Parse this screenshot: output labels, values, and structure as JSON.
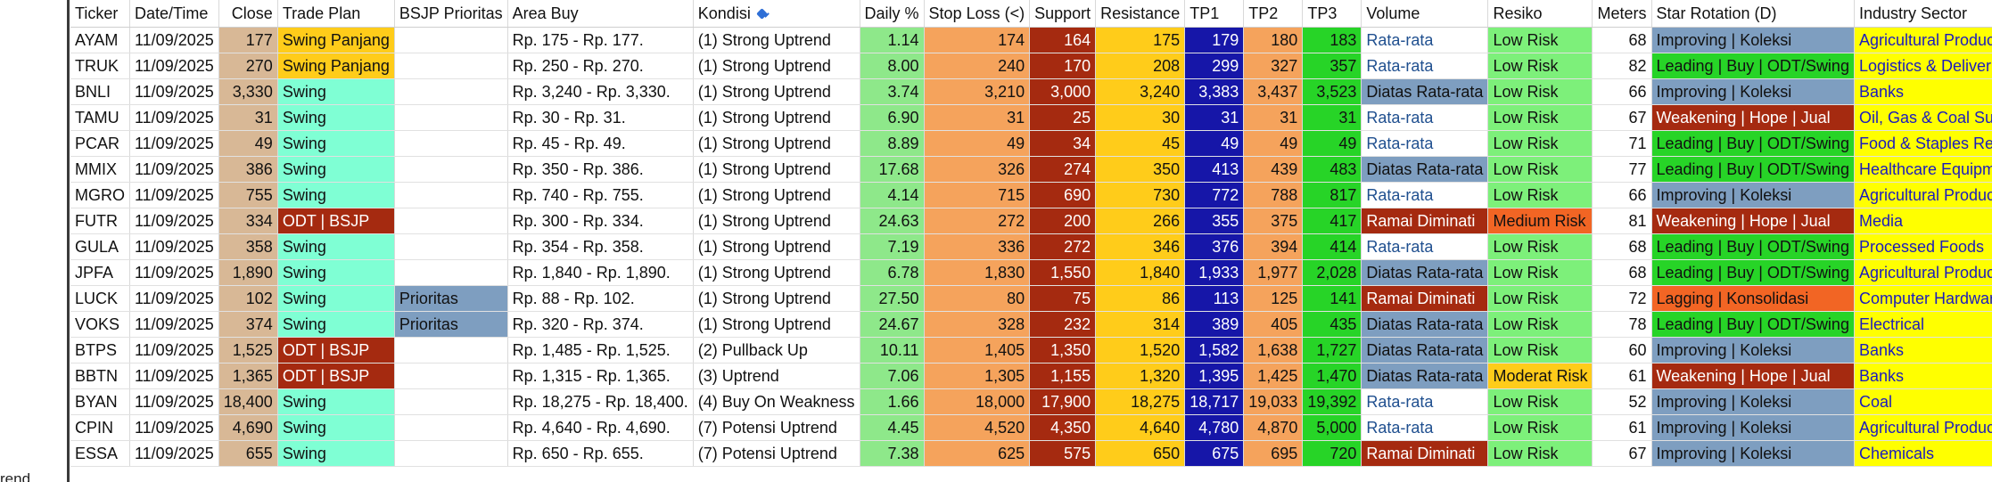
{
  "left_fragment": "rend",
  "columns": [
    "Ticker",
    "Date/Time",
    "Close",
    "Trade Plan",
    "BSJP Prioritas",
    "Area Buy",
    "Kondisi",
    "Daily %",
    "Stop Loss (<)",
    "Support",
    "Resistance",
    "TP1",
    "TP2",
    "TP3",
    "Volume",
    "Resiko",
    "Meters",
    "Star Rotation (D)",
    "Industry Sector"
  ],
  "sort_icon": "sort-filter-icon",
  "rows": [
    {
      "ticker": "AYAM",
      "date": "11/09/2025",
      "close": "177",
      "plan": "Swing Panjang",
      "bsjp": "",
      "area": "Rp. 175 - Rp. 177.",
      "kondisi": "(1) Strong Uptrend",
      "daily": "1.14",
      "stop": "174",
      "support": "164",
      "resistance": "175",
      "tp1": "179",
      "tp2": "180",
      "tp3": "183",
      "volume": "Rata-rata",
      "risk": "Low Risk",
      "meters": "68",
      "star": "Improving | Koleksi",
      "sector": "Agricultural Products"
    },
    {
      "ticker": "TRUK",
      "date": "11/09/2025",
      "close": "270",
      "plan": "Swing Panjang",
      "bsjp": "",
      "area": "Rp. 250 - Rp. 270.",
      "kondisi": "(1) Strong Uptrend",
      "daily": "8.00",
      "stop": "240",
      "support": "170",
      "resistance": "208",
      "tp1": "299",
      "tp2": "327",
      "tp3": "357",
      "volume": "Rata-rata",
      "risk": "Low Risk",
      "meters": "82",
      "star": "Leading | Buy | ODT/Swing",
      "sector": "Logistics & Deliveries"
    },
    {
      "ticker": "BNLI",
      "date": "11/09/2025",
      "close": "3,330",
      "plan": "Swing",
      "bsjp": "",
      "area": "Rp. 3,240 - Rp. 3,330.",
      "kondisi": "(1) Strong Uptrend",
      "daily": "3.74",
      "stop": "3,210",
      "support": "3,000",
      "resistance": "3,240",
      "tp1": "3,383",
      "tp2": "3,437",
      "tp3": "3,523",
      "volume": "Diatas Rata-rata",
      "risk": "Low Risk",
      "meters": "66",
      "star": "Improving | Koleksi",
      "sector": "Banks"
    },
    {
      "ticker": "TAMU",
      "date": "11/09/2025",
      "close": "31",
      "plan": "Swing",
      "bsjp": "",
      "area": "Rp. 30 - Rp. 31.",
      "kondisi": "(1) Strong Uptrend",
      "daily": "6.90",
      "stop": "31",
      "support": "25",
      "resistance": "30",
      "tp1": "31",
      "tp2": "31",
      "tp3": "31",
      "volume": "Rata-rata",
      "risk": "Low Risk",
      "meters": "67",
      "star": "Weakening | Hope | Jual",
      "sector": "Oil, Gas & Coal Supp"
    },
    {
      "ticker": "PCAR",
      "date": "11/09/2025",
      "close": "49",
      "plan": "Swing",
      "bsjp": "",
      "area": "Rp. 45 - Rp. 49.",
      "kondisi": "(1) Strong Uptrend",
      "daily": "8.89",
      "stop": "49",
      "support": "34",
      "resistance": "45",
      "tp1": "49",
      "tp2": "49",
      "tp3": "49",
      "volume": "Rata-rata",
      "risk": "Low Risk",
      "meters": "71",
      "star": "Leading | Buy | ODT/Swing",
      "sector": "Food & Staples Retail"
    },
    {
      "ticker": "MMIX",
      "date": "11/09/2025",
      "close": "386",
      "plan": "Swing",
      "bsjp": "",
      "area": "Rp. 350 - Rp. 386.",
      "kondisi": "(1) Strong Uptrend",
      "daily": "17.68",
      "stop": "326",
      "support": "274",
      "resistance": "350",
      "tp1": "413",
      "tp2": "439",
      "tp3": "483",
      "volume": "Diatas Rata-rata",
      "risk": "Low Risk",
      "meters": "77",
      "star": "Leading | Buy | ODT/Swing",
      "sector": "Healthcare Equipment"
    },
    {
      "ticker": "MGRO",
      "date": "11/09/2025",
      "close": "755",
      "plan": "Swing",
      "bsjp": "",
      "area": "Rp. 740 - Rp. 755.",
      "kondisi": "(1) Strong Uptrend",
      "daily": "4.14",
      "stop": "715",
      "support": "690",
      "resistance": "730",
      "tp1": "772",
      "tp2": "788",
      "tp3": "817",
      "volume": "Rata-rata",
      "risk": "Low Risk",
      "meters": "66",
      "star": "Improving | Koleksi",
      "sector": "Agricultural Products"
    },
    {
      "ticker": "FUTR",
      "date": "11/09/2025",
      "close": "334",
      "plan": "ODT | BSJP",
      "bsjp": "",
      "area": "Rp. 300 - Rp. 334.",
      "kondisi": "(1) Strong Uptrend",
      "daily": "24.63",
      "stop": "272",
      "support": "200",
      "resistance": "266",
      "tp1": "355",
      "tp2": "375",
      "tp3": "417",
      "volume": "Ramai Diminati",
      "risk": "Medium Risk",
      "meters": "81",
      "star": "Weakening | Hope | Jual",
      "sector": "Media"
    },
    {
      "ticker": "GULA",
      "date": "11/09/2025",
      "close": "358",
      "plan": "Swing",
      "bsjp": "",
      "area": "Rp. 354 - Rp. 358.",
      "kondisi": "(1) Strong Uptrend",
      "daily": "7.19",
      "stop": "336",
      "support": "272",
      "resistance": "346",
      "tp1": "376",
      "tp2": "394",
      "tp3": "414",
      "volume": "Rata-rata",
      "risk": "Low Risk",
      "meters": "68",
      "star": "Leading | Buy | ODT/Swing",
      "sector": "Processed Foods"
    },
    {
      "ticker": "JPFA",
      "date": "11/09/2025",
      "close": "1,890",
      "plan": "Swing",
      "bsjp": "",
      "area": "Rp. 1,840 - Rp. 1,890.",
      "kondisi": "(1) Strong Uptrend",
      "daily": "6.78",
      "stop": "1,830",
      "support": "1,550",
      "resistance": "1,840",
      "tp1": "1,933",
      "tp2": "1,977",
      "tp3": "2,028",
      "volume": "Diatas Rata-rata",
      "risk": "Low Risk",
      "meters": "68",
      "star": "Leading | Buy | ODT/Swing",
      "sector": "Agricultural Products"
    },
    {
      "ticker": "LUCK",
      "date": "11/09/2025",
      "close": "102",
      "plan": "Swing",
      "bsjp": "Prioritas",
      "area": "Rp. 88 - Rp. 102.",
      "kondisi": "(1) Strong Uptrend",
      "daily": "27.50",
      "stop": "80",
      "support": "75",
      "resistance": "86",
      "tp1": "113",
      "tp2": "125",
      "tp3": "141",
      "volume": "Ramai Diminati",
      "risk": "Low Risk",
      "meters": "72",
      "star": "Lagging | Konsolidasi",
      "sector": "Computer Hardware"
    },
    {
      "ticker": "VOKS",
      "date": "11/09/2025",
      "close": "374",
      "plan": "Swing",
      "bsjp": "Prioritas",
      "area": "Rp. 320 - Rp. 374.",
      "kondisi": "(1) Strong Uptrend",
      "daily": "24.67",
      "stop": "328",
      "support": "232",
      "resistance": "314",
      "tp1": "389",
      "tp2": "405",
      "tp3": "435",
      "volume": "Diatas Rata-rata",
      "risk": "Low Risk",
      "meters": "78",
      "star": "Leading | Buy | ODT/Swing",
      "sector": "Electrical"
    },
    {
      "ticker": "BTPS",
      "date": "11/09/2025",
      "close": "1,525",
      "plan": "ODT | BSJP",
      "bsjp": "",
      "area": "Rp. 1,485 - Rp. 1,525.",
      "kondisi": "(2) Pullback Up",
      "daily": "10.11",
      "stop": "1,405",
      "support": "1,350",
      "resistance": "1,520",
      "tp1": "1,582",
      "tp2": "1,638",
      "tp3": "1,727",
      "volume": "Diatas Rata-rata",
      "risk": "Low Risk",
      "meters": "60",
      "star": "Improving | Koleksi",
      "sector": "Banks"
    },
    {
      "ticker": "BBTN",
      "date": "11/09/2025",
      "close": "1,365",
      "plan": "ODT | BSJP",
      "bsjp": "",
      "area": "Rp. 1,315 - Rp. 1,365.",
      "kondisi": "(3) Uptrend",
      "daily": "7.06",
      "stop": "1,305",
      "support": "1,155",
      "resistance": "1,320",
      "tp1": "1,395",
      "tp2": "1,425",
      "tp3": "1,470",
      "volume": "Diatas Rata-rata",
      "risk": "Moderat Risk",
      "meters": "61",
      "star": "Weakening | Hope | Jual",
      "sector": "Banks"
    },
    {
      "ticker": "BYAN",
      "date": "11/09/2025",
      "close": "18,400",
      "plan": "Swing",
      "bsjp": "",
      "area": "Rp. 18,275 - Rp. 18,400.",
      "kondisi": "(4) Buy On Weakness",
      "daily": "1.66",
      "stop": "18,000",
      "support": "17,900",
      "resistance": "18,275",
      "tp1": "18,717",
      "tp2": "19,033",
      "tp3": "19,392",
      "volume": "Rata-rata",
      "risk": "Low Risk",
      "meters": "52",
      "star": "Improving | Koleksi",
      "sector": "Coal"
    },
    {
      "ticker": "CPIN",
      "date": "11/09/2025",
      "close": "4,690",
      "plan": "Swing",
      "bsjp": "",
      "area": "Rp. 4,640 - Rp. 4,690.",
      "kondisi": "(7) Potensi Uptrend",
      "daily": "4.45",
      "stop": "4,520",
      "support": "4,350",
      "resistance": "4,640",
      "tp1": "4,780",
      "tp2": "4,870",
      "tp3": "5,000",
      "volume": "Rata-rata",
      "risk": "Low Risk",
      "meters": "61",
      "star": "Improving | Koleksi",
      "sector": "Agricultural Products"
    },
    {
      "ticker": "ESSA",
      "date": "11/09/2025",
      "close": "655",
      "plan": "Swing",
      "bsjp": "",
      "area": "Rp. 650 - Rp. 655.",
      "kondisi": "(7) Potensi Uptrend",
      "daily": "7.38",
      "stop": "625",
      "support": "575",
      "resistance": "650",
      "tp1": "675",
      "tp2": "695",
      "tp3": "720",
      "volume": "Ramai Diminati",
      "risk": "Low Risk",
      "meters": "67",
      "star": "Improving | Koleksi",
      "sector": "Chemicals"
    }
  ]
}
